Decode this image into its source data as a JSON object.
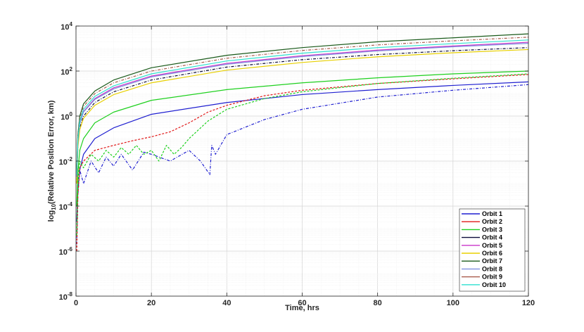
{
  "chart_data": {
    "type": "line",
    "title": "",
    "xlabel": "Time, hrs",
    "ylabel_prefix": "log",
    "ylabel_sub": "10",
    "ylabel_rest": "(Relative Position Error, km)",
    "xlim": [
      0,
      120
    ],
    "ylim_exp": [
      -8,
      4
    ],
    "yscale": "log",
    "grid": true,
    "legend_position": "bottom-right",
    "x_ticks": [
      "0",
      "20",
      "40",
      "60",
      "80",
      "100",
      "120"
    ],
    "y_ticks": [
      {
        "base": "10",
        "exp": "-8"
      },
      {
        "base": "10",
        "exp": "-6"
      },
      {
        "base": "10",
        "exp": "-4"
      },
      {
        "base": "10",
        "exp": "-2"
      },
      {
        "base": "10",
        "exp": "0"
      },
      {
        "base": "10",
        "exp": "2"
      },
      {
        "base": "10",
        "exp": "4"
      }
    ],
    "legend": [
      {
        "name": "Orbit 1",
        "color": "#1f1fd0"
      },
      {
        "name": "Orbit 2",
        "color": "#e01818"
      },
      {
        "name": "Orbit 3",
        "color": "#1ed01e"
      },
      {
        "name": "Orbit 4",
        "color": "#0d0d3a"
      },
      {
        "name": "Orbit 5",
        "color": "#c935c9"
      },
      {
        "name": "Orbit 6",
        "color": "#e8d000"
      },
      {
        "name": "Orbit 7",
        "color": "#1a5a1a"
      },
      {
        "name": "Orbit 8",
        "color": "#7f8fe0"
      },
      {
        "name": "Orbit 9",
        "color": "#a85a4a"
      },
      {
        "name": "Orbit 10",
        "color": "#2ee0d0"
      }
    ],
    "series": [
      {
        "name": "Orbit 1",
        "color": "#1f1fd0",
        "style": "solid",
        "x": [
          0.2,
          0.5,
          1,
          2,
          5,
          10,
          20,
          40,
          60,
          80,
          100,
          120
        ],
        "y": [
          2e-05,
          0.0005,
          0.004,
          0.02,
          0.1,
          0.3,
          1.2,
          4,
          9,
          15,
          23,
          33
        ]
      },
      {
        "name": "Orbit 1",
        "color": "#1f1fd0",
        "style": "dashdot",
        "x": [
          0.2,
          0.5,
          1,
          2,
          4,
          6,
          8,
          10,
          12,
          15,
          18,
          20,
          25,
          30,
          33,
          35.5,
          36,
          37,
          40,
          50,
          60,
          80,
          100,
          120
        ],
        "y": [
          2e-06,
          0.0003,
          0.004,
          0.001,
          0.01,
          0.003,
          0.015,
          0.006,
          0.02,
          0.004,
          0.025,
          0.02,
          0.01,
          0.03,
          0.01,
          0.0025,
          0.05,
          0.02,
          0.15,
          0.7,
          2,
          7,
          14,
          25
        ]
      },
      {
        "name": "Orbit 2",
        "color": "#e01818",
        "style": "dashed",
        "x": [
          0.2,
          0.5,
          1,
          2,
          5,
          10,
          15,
          20,
          25,
          30,
          35,
          40,
          50,
          60,
          80,
          100,
          120
        ],
        "y": [
          1e-06,
          0.0003,
          0.005,
          0.01,
          0.03,
          0.05,
          0.08,
          0.12,
          0.2,
          0.5,
          1.5,
          3,
          8,
          14,
          28,
          45,
          70
        ]
      },
      {
        "name": "Orbit 3",
        "color": "#1ed01e",
        "style": "solid",
        "x": [
          0.2,
          0.5,
          1,
          2,
          5,
          10,
          20,
          40,
          60,
          80,
          100,
          120
        ],
        "y": [
          0.0001,
          0.003,
          0.03,
          0.1,
          0.5,
          1.5,
          5,
          15,
          30,
          50,
          75,
          100
        ]
      },
      {
        "name": "Orbit 3",
        "color": "#1ed01e",
        "style": "dashed",
        "x": [
          0.2,
          0.5,
          1,
          2,
          4,
          6,
          8,
          10,
          12,
          14,
          16,
          18,
          20,
          22,
          24,
          26,
          28,
          30,
          35,
          40,
          50,
          60,
          80,
          100,
          120
        ],
        "y": [
          5e-06,
          0.001,
          0.01,
          0.005,
          0.02,
          0.01,
          0.03,
          0.015,
          0.04,
          0.02,
          0.05,
          0.02,
          0.03,
          0.01,
          0.05,
          0.02,
          0.04,
          0.1,
          0.6,
          2,
          6,
          12,
          28,
          48,
          75
        ]
      },
      {
        "name": "Orbit 4",
        "color": "#0d0d3a",
        "style": "dashdot",
        "x": [
          0.2,
          0.5,
          1,
          2,
          5,
          10,
          20,
          40,
          60,
          80,
          100,
          120
        ],
        "y": [
          0.001,
          0.05,
          0.3,
          1,
          4,
          12,
          40,
          150,
          320,
          540,
          800,
          1100
        ]
      },
      {
        "name": "Orbit 5",
        "color": "#c935c9",
        "style": "solid",
        "x": [
          0.2,
          0.5,
          1,
          2,
          5,
          10,
          20,
          40,
          60,
          80,
          100,
          120
        ],
        "y": [
          0.002,
          0.08,
          0.5,
          1.6,
          6,
          18,
          60,
          220,
          480,
          850,
          1300,
          1900
        ]
      },
      {
        "name": "Orbit 6",
        "color": "#e8d000",
        "style": "solid",
        "x": [
          0.2,
          0.5,
          1,
          2,
          5,
          10,
          20,
          40,
          60,
          80,
          100,
          120
        ],
        "y": [
          0.001,
          0.04,
          0.25,
          0.8,
          3,
          9,
          30,
          110,
          240,
          430,
          650,
          900
        ]
      },
      {
        "name": "Orbit 7",
        "color": "#1a5a1a",
        "style": "solid",
        "x": [
          0.2,
          0.5,
          1,
          2,
          5,
          10,
          20,
          40,
          60,
          80,
          100,
          120
        ],
        "y": [
          0.004,
          0.15,
          1,
          3.5,
          13,
          40,
          140,
          500,
          1100,
          2000,
          3000,
          4500
        ]
      },
      {
        "name": "Orbit 8",
        "color": "#7f8fe0",
        "style": "solid",
        "x": [
          0.2,
          0.5,
          1,
          2,
          5,
          10,
          20,
          40,
          60,
          80,
          100,
          120
        ],
        "y": [
          0.002,
          0.07,
          0.45,
          1.5,
          5.5,
          16,
          55,
          200,
          440,
          780,
          1200,
          1700
        ]
      },
      {
        "name": "Orbit 9",
        "color": "#a85a4a",
        "style": "dashdot",
        "x": [
          0.2,
          0.5,
          1,
          2,
          5,
          10,
          20,
          40,
          60,
          80,
          100,
          120
        ],
        "y": [
          0.003,
          0.12,
          0.8,
          2.7,
          10,
          30,
          100,
          370,
          820,
          1450,
          2200,
          3200
        ]
      },
      {
        "name": "Orbit 10",
        "color": "#2ee0d0",
        "style": "solid",
        "x": [
          0.2,
          0.5,
          1,
          2,
          5,
          10,
          20,
          40,
          60,
          80,
          100,
          120
        ],
        "y": [
          0.0025,
          0.09,
          0.6,
          2,
          7.5,
          22,
          75,
          280,
          620,
          1100,
          1650,
          2400
        ]
      }
    ]
  }
}
